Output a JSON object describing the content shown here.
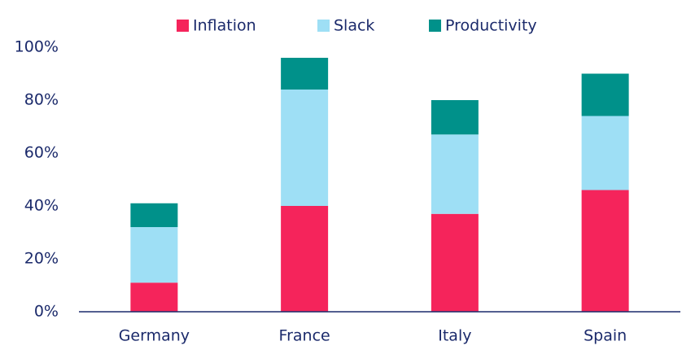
{
  "chart_data": {
    "type": "stacked_bar",
    "categories": [
      "Germany",
      "France",
      "Italy",
      "Spain"
    ],
    "series": [
      {
        "name": "Inflation",
        "color": "#f5245b",
        "values": [
          11,
          40,
          37,
          46
        ]
      },
      {
        "name": "Slack",
        "color": "#9edff5",
        "values": [
          21,
          44,
          30,
          28
        ]
      },
      {
        "name": "Productivity",
        "color": "#00918a",
        "values": [
          9,
          12,
          13,
          16
        ]
      }
    ],
    "ylim": [
      0,
      100
    ],
    "yticks": [
      {
        "value": 0,
        "label": "0%"
      },
      {
        "value": 20,
        "label": "20%"
      },
      {
        "value": 40,
        "label": "40%"
      },
      {
        "value": 60,
        "label": "60%"
      },
      {
        "value": 80,
        "label": "80%"
      },
      {
        "value": 100,
        "label": "100%"
      }
    ],
    "grid": false,
    "legend": "top"
  }
}
